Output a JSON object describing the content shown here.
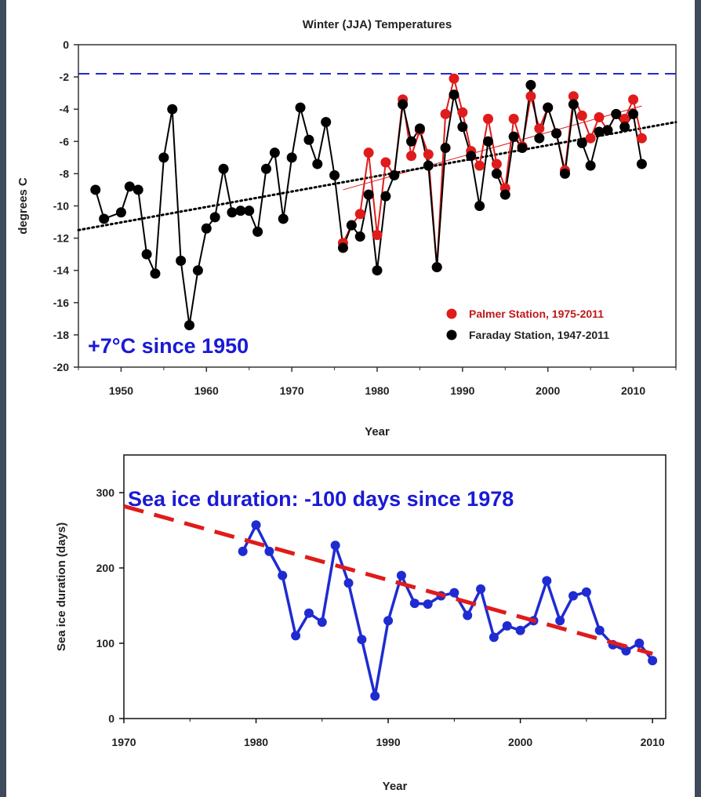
{
  "chart_data": [
    {
      "type": "line",
      "title": "Winter (JJA) Temperatures",
      "xlabel": "Year",
      "ylabel": "degrees C",
      "xlim": [
        1945,
        2015
      ],
      "ylim": [
        -20,
        0
      ],
      "xticks": [
        1950,
        1960,
        1970,
        1980,
        1990,
        2000,
        2010
      ],
      "yticks": [
        0,
        -2,
        -4,
        -6,
        -8,
        -10,
        -12,
        -14,
        -16,
        -18,
        -20
      ],
      "annotation": "+7°C since 1950",
      "freezing_line": {
        "y": -1.8,
        "color": "#1f2bd1",
        "style": "dashed"
      },
      "legend_position": "bottom-right",
      "series": [
        {
          "name": "Palmer Station, 1975-2011",
          "color": "#e01b1b",
          "x": [
            1976,
            1977,
            1978,
            1979,
            1980,
            1981,
            1982,
            1983,
            1984,
            1985,
            1986,
            1987,
            1988,
            1989,
            1990,
            1991,
            1992,
            1993,
            1994,
            1995,
            1996,
            1997,
            1998,
            1999,
            2000,
            2001,
            2002,
            2003,
            2004,
            2005,
            2006,
            2007,
            2008,
            2009,
            2010,
            2011
          ],
          "y": [
            -12.3,
            -11.2,
            -10.5,
            -6.7,
            -11.8,
            -7.3,
            -8.1,
            -3.4,
            -6.9,
            -5.3,
            -6.8,
            -13.8,
            -4.3,
            -2.1,
            -4.2,
            -6.6,
            -7.5,
            -4.6,
            -7.4,
            -8.9,
            -4.6,
            -6.3,
            -3.2,
            -5.2,
            -3.9,
            -5.5,
            -7.8,
            -3.2,
            -4.4,
            -5.8,
            -4.5,
            -5.3,
            -4.3,
            -4.6,
            -3.4,
            -5.8
          ],
          "trend": {
            "x": [
              1976,
              2011
            ],
            "y": [
              -9.0,
              -3.8
            ],
            "style": "solid"
          }
        },
        {
          "name": "Faraday Station, 1947-2011",
          "color": "#000000",
          "x": [
            1947,
            1948,
            1949,
            1950,
            1951,
            1952,
            1953,
            1954,
            1955,
            1956,
            1957,
            1958,
            1959,
            1960,
            1961,
            1962,
            1963,
            1964,
            1965,
            1966,
            1967,
            1968,
            1969,
            1970,
            1971,
            1972,
            1973,
            1974,
            1975,
            1976,
            1977,
            1978,
            1979,
            1980,
            1981,
            1982,
            1983,
            1984,
            1985,
            1986,
            1987,
            1988,
            1989,
            1990,
            1991,
            1992,
            1993,
            1994,
            1995,
            1996,
            1997,
            1998,
            1999,
            2000,
            2001,
            2002,
            2003,
            2004,
            2005,
            2006,
            2007,
            2008,
            2009,
            2010,
            2011
          ],
          "y": [
            -9.0,
            -10.8,
            null,
            -10.4,
            -8.8,
            -9.0,
            -13.0,
            -14.2,
            -7.0,
            -4.0,
            -13.4,
            -17.4,
            -14.0,
            -11.4,
            -10.7,
            -7.7,
            -10.4,
            -10.3,
            -10.3,
            -11.6,
            -7.7,
            -6.7,
            -10.8,
            -7.0,
            -3.9,
            -5.9,
            -7.4,
            -4.8,
            -8.1,
            -12.6,
            -11.2,
            -11.9,
            -9.3,
            -14.0,
            -9.4,
            -8.1,
            -3.7,
            -6.0,
            -5.2,
            -7.5,
            -13.8,
            -6.4,
            -3.1,
            -5.1,
            -6.9,
            -10.0,
            -6.0,
            -8.0,
            -9.3,
            -5.7,
            -6.4,
            -2.5,
            -5.8,
            -3.9,
            -5.5,
            -8.0,
            -3.7,
            -6.1,
            -7.5,
            -5.4,
            -5.3,
            -4.3,
            -5.1,
            -4.3,
            -7.4
          ],
          "trend": {
            "x": [
              1945,
              2015
            ],
            "y": [
              -11.5,
              -4.8
            ],
            "style": "dotted"
          }
        }
      ]
    },
    {
      "type": "line",
      "title": "",
      "xlabel": "Year",
      "ylabel": "Sea ice duration (days)",
      "xlim": [
        1970,
        2011
      ],
      "ylim": [
        0,
        350
      ],
      "xticks": [
        1970,
        1980,
        1990,
        2000,
        2010
      ],
      "yticks": [
        0,
        100,
        200,
        300
      ],
      "annotation": "Sea ice duration: -100 days since 1978",
      "series": [
        {
          "name": "",
          "color": "#1f2bd1",
          "x": [
            1979,
            1980,
            1981,
            1982,
            1983,
            1984,
            1985,
            1986,
            1987,
            1988,
            1989,
            1990,
            1991,
            1992,
            1993,
            1994,
            1995,
            1996,
            1997,
            1998,
            1999,
            2000,
            2001,
            2002,
            2003,
            2004,
            2005,
            2006,
            2007,
            2008,
            2009,
            2010
          ],
          "y": [
            222,
            257,
            222,
            190,
            110,
            140,
            128,
            230,
            180,
            105,
            30,
            130,
            190,
            153,
            152,
            163,
            167,
            137,
            172,
            108,
            123,
            117,
            130,
            183,
            130,
            163,
            168,
            117,
            98,
            90,
            100,
            77
          ],
          "trend": {
            "x": [
              1970,
              2010
            ],
            "y": [
              282,
              86
            ],
            "style": "dashed",
            "color": "#e01b1b"
          }
        }
      ]
    }
  ]
}
